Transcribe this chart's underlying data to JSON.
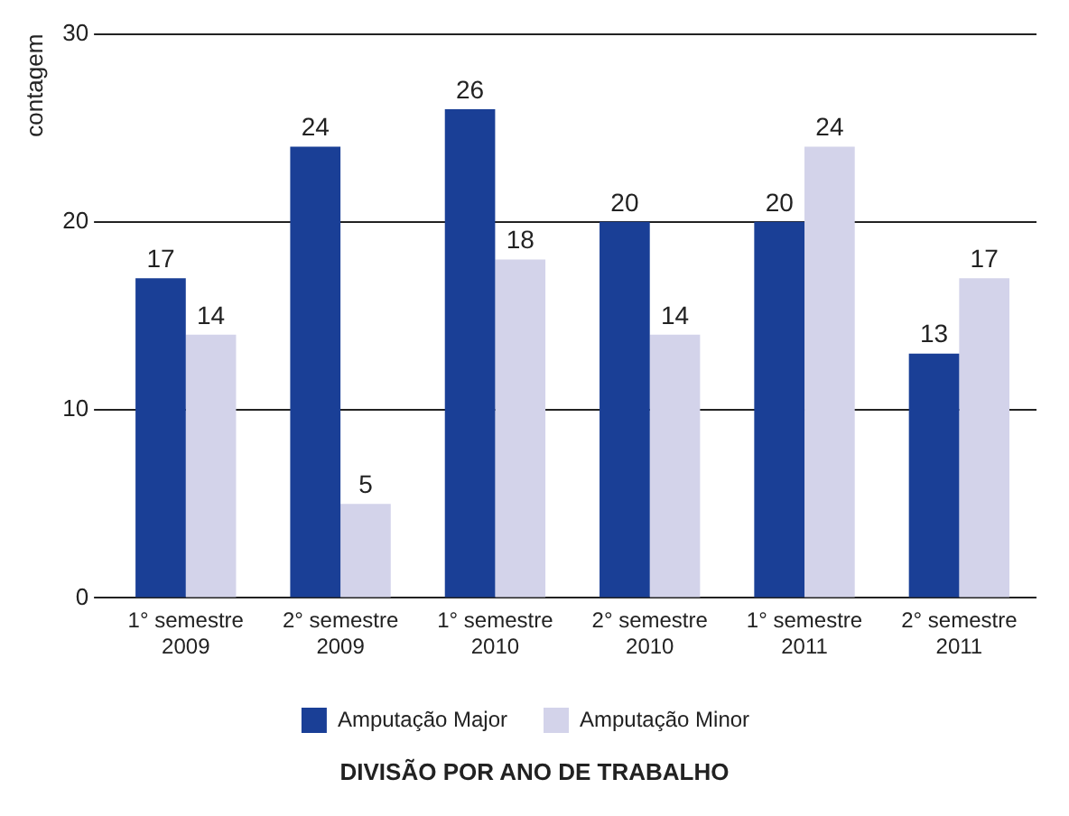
{
  "chart_data": {
    "type": "bar",
    "xlabel": "DIVISÃO POR ANO DE TRABALHO",
    "ylabel": "contagem",
    "categories": [
      "1° semestre 2009",
      "2° semestre 2009",
      "1° semestre 2010",
      "2° semestre 2010",
      "1° semestre 2011",
      "2° semestre 2011"
    ],
    "series": [
      {
        "name": "Amputação Major",
        "color": "#1a3f96",
        "values": [
          17,
          24,
          26,
          20,
          20,
          13
        ]
      },
      {
        "name": "Amputação Minor",
        "color": "#d3d3ea",
        "values": [
          14,
          5,
          18,
          14,
          24,
          17
        ]
      }
    ],
    "ylim": [
      0,
      30
    ],
    "yticks": [
      0,
      10,
      20,
      30
    ],
    "grid": "y",
    "legend": "bottom",
    "data_labels": true
  }
}
